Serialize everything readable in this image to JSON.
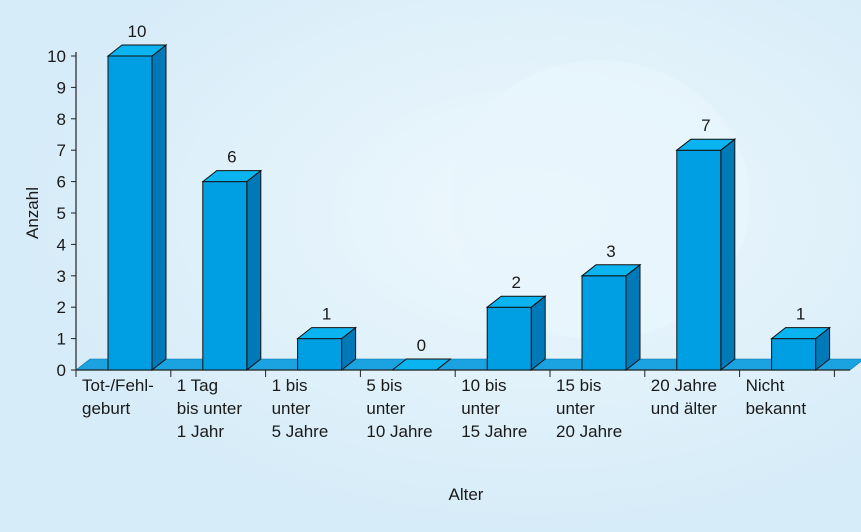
{
  "chart_data": {
    "type": "bar",
    "title": "",
    "xlabel": "Alter",
    "ylabel": "Anzahl",
    "ylim": [
      0,
      10
    ],
    "yticks": [
      0,
      1,
      2,
      3,
      4,
      5,
      6,
      7,
      8,
      9,
      10
    ],
    "grid": false,
    "categories": [
      [
        "Tot-/Fehl-",
        "geburt"
      ],
      [
        "1 Tag",
        "bis unter",
        "1 Jahr"
      ],
      [
        "1 bis",
        "unter",
        "5 Jahre"
      ],
      [
        "5 bis",
        "unter",
        "10 Jahre"
      ],
      [
        "10 bis",
        "unter",
        "15 Jahre"
      ],
      [
        "15 bis",
        "unter",
        "20 Jahre"
      ],
      [
        "20 Jahre",
        "und älter"
      ],
      [
        "Nicht",
        "bekannt"
      ]
    ],
    "values": [
      10,
      6,
      1,
      0,
      2,
      3,
      7,
      1
    ],
    "colors": {
      "bar_front": "#009fe3",
      "bar_top": "#0ab4f0",
      "bar_side": "#0079b8",
      "floor": "#1aa3e0",
      "background": "#dff0fa"
    }
  }
}
